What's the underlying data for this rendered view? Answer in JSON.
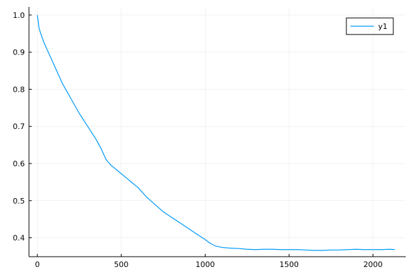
{
  "chart_data": {
    "type": "line",
    "title": "",
    "xlabel": "",
    "ylabel": "",
    "xlim": [
      -50,
      2195
    ],
    "ylim": [
      0.349,
      1.022
    ],
    "xticks": [
      0,
      500,
      1000,
      1500,
      2000
    ],
    "xtick_labels": [
      "0",
      "500",
      "1000",
      "1500",
      "2000"
    ],
    "yticks": [
      0.4,
      0.5,
      0.6,
      0.7,
      0.8,
      0.9,
      1.0
    ],
    "ytick_labels": [
      "0.4",
      "0.5",
      "0.6",
      "0.7",
      "0.8",
      "0.9",
      "1.0"
    ],
    "grid": true,
    "legend_position": "top-right",
    "series": [
      {
        "name": "y1",
        "color": "#009af9",
        "x": [
          0,
          10,
          20,
          40,
          60,
          80,
          100,
          125,
          150,
          175,
          200,
          250,
          300,
          350,
          380,
          410,
          440,
          480,
          520,
          560,
          600,
          650,
          700,
          750,
          800,
          850,
          900,
          950,
          1000,
          1030,
          1060,
          1100,
          1150,
          1200,
          1250,
          1300,
          1350,
          1400,
          1450,
          1500,
          1550,
          1600,
          1650,
          1700,
          1750,
          1800,
          1850,
          1900,
          1950,
          2000,
          2050,
          2100,
          2130
        ],
        "y": [
          1.0,
          0.965,
          0.95,
          0.925,
          0.905,
          0.885,
          0.865,
          0.84,
          0.815,
          0.795,
          0.775,
          0.735,
          0.7,
          0.665,
          0.64,
          0.61,
          0.595,
          0.58,
          0.565,
          0.55,
          0.535,
          0.51,
          0.49,
          0.47,
          0.455,
          0.44,
          0.425,
          0.41,
          0.395,
          0.385,
          0.378,
          0.374,
          0.372,
          0.371,
          0.369,
          0.368,
          0.369,
          0.369,
          0.368,
          0.368,
          0.368,
          0.367,
          0.366,
          0.366,
          0.367,
          0.367,
          0.368,
          0.369,
          0.368,
          0.368,
          0.368,
          0.369,
          0.368
        ]
      }
    ]
  }
}
